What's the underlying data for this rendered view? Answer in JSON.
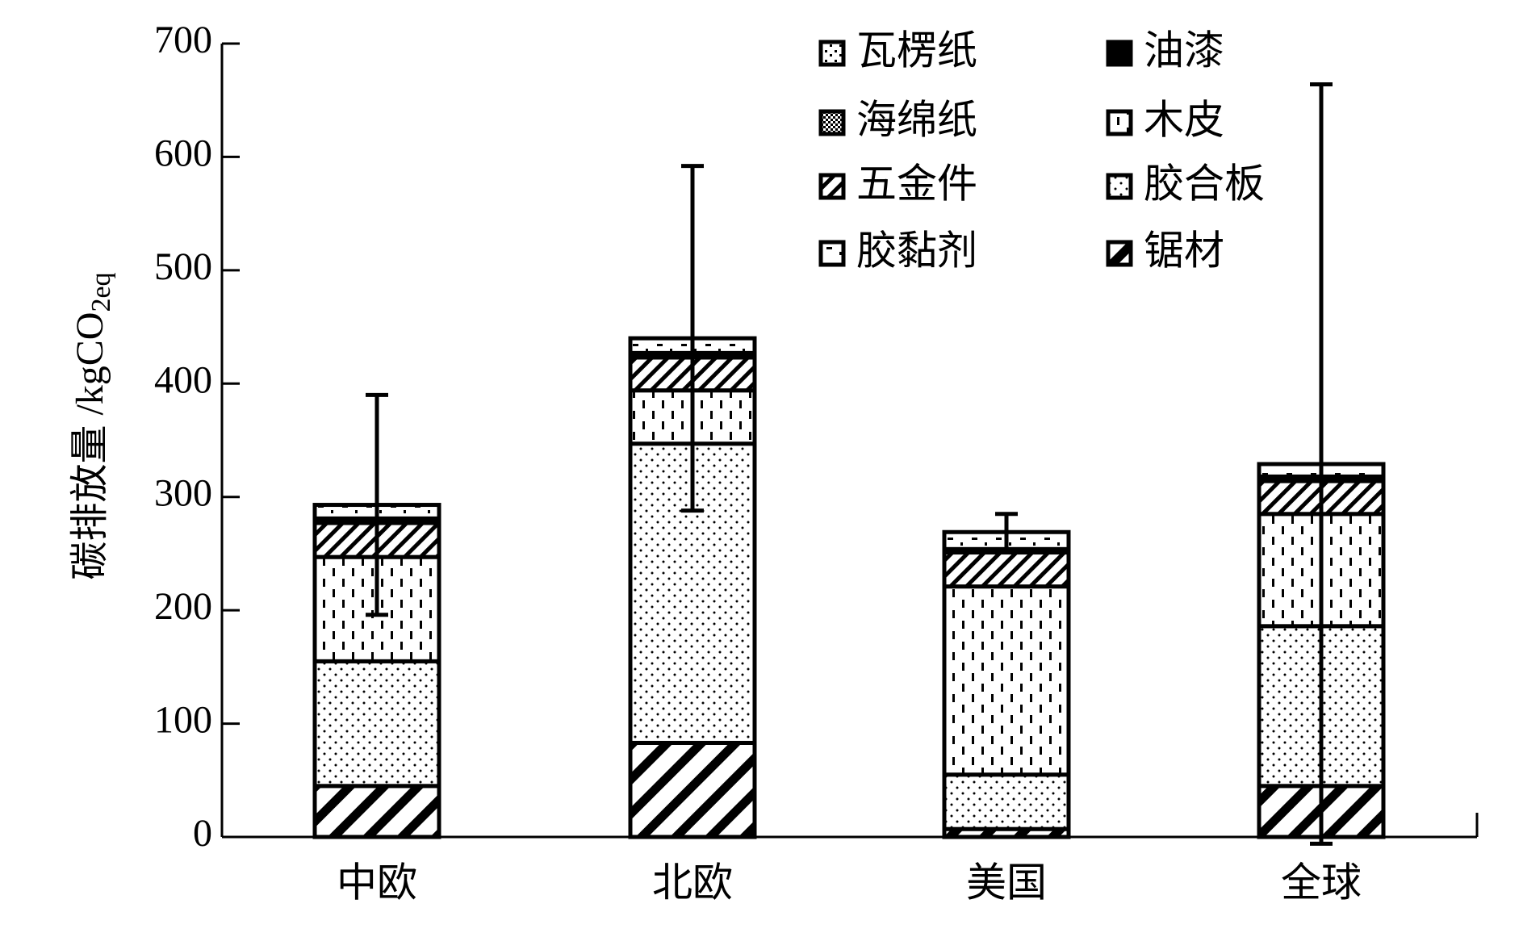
{
  "chart_data": {
    "type": "stacked_bar",
    "y_label": [
      "碳排放量 /kgCO",
      "2eq"
    ],
    "categories": [
      "中欧",
      "北欧",
      "美国",
      "全球"
    ],
    "series": [
      {
        "name": "瓦楞纸",
        "color": "#000000",
        "values": [
          0,
          0,
          0,
          0
        ]
      },
      {
        "name": "油漆",
        "color": "#000000",
        "values": [
          4,
          4,
          3,
          4
        ]
      },
      {
        "name": "海绵纸",
        "color": "#000000",
        "values": [
          0,
          0,
          0,
          0
        ]
      },
      {
        "name": "木皮",
        "color": "#000000",
        "values": [
          92,
          47,
          166,
          99
        ]
      },
      {
        "name": "五金件",
        "color": "#000000",
        "values": [
          30,
          29,
          30,
          29
        ]
      },
      {
        "name": "胶合板",
        "color": "#000000",
        "values": [
          110,
          264,
          48,
          141
        ]
      },
      {
        "name": "胶黏剂",
        "color": "#000000",
        "values": [
          12,
          13,
          15,
          11
        ]
      },
      {
        "name": "锯材",
        "color": "#000000",
        "values": [
          45,
          83,
          7,
          45
        ]
      }
    ],
    "errors": [
      97,
      152,
      16,
      335
    ],
    "ylim": [
      0,
      700
    ],
    "yticks": [
      0,
      100,
      200,
      300,
      400,
      500,
      600,
      700
    ]
  }
}
